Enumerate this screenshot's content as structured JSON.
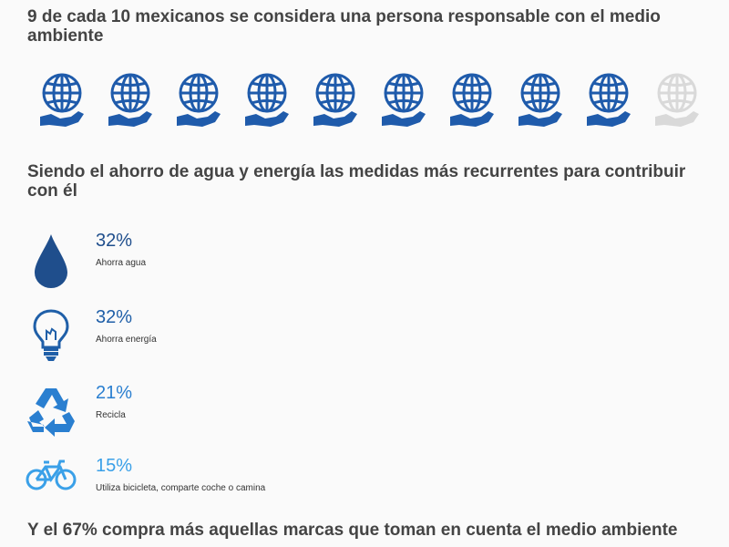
{
  "headings": {
    "main": "9 de cada 10 mexicanos se considera una persona responsable con el medio ambiente",
    "measures": "Siendo el ahorro de agua y energía las medidas más recurrentes para contribuir con él",
    "brands": "Y el 67% compra más aquellas marcas que toman en cuenta el medio ambiente"
  },
  "pictogram": {
    "filled": 9,
    "total": 10,
    "icon": "globe-in-hand-icon",
    "filled_color": "#1f5bab",
    "empty_color": "#d9d9d9"
  },
  "measures": [
    {
      "value": "32%",
      "label": "Ahorra agua",
      "icon": "water-drop-icon",
      "color": "#1f4e8c"
    },
    {
      "value": "32%",
      "label": "Ahorra energía",
      "icon": "lightbulb-icon",
      "color": "#1f5fa8"
    },
    {
      "value": "21%",
      "label": "Recicla",
      "icon": "recycle-icon",
      "color": "#2a7fd0"
    },
    {
      "value": "15%",
      "label": "Utiliza bicicleta, comparte coche o camina",
      "icon": "bicycle-icon",
      "color": "#3aa0e8"
    }
  ]
}
